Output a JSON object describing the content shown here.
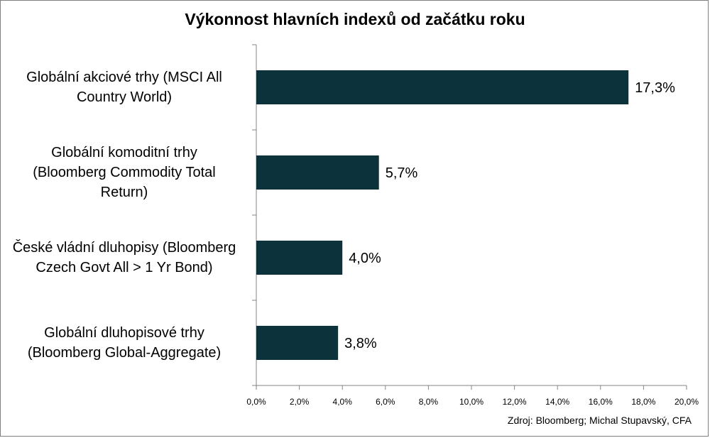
{
  "chart_data": {
    "type": "bar",
    "orientation": "horizontal",
    "title": "Výkonnost hlavních indexů od začátku roku",
    "categories": [
      "Globální akciové trhy (MSCI All Country World)",
      "Globální komoditní trhy (Bloomberg Commodity Total Return)",
      "České vládní dluhopisy (Bloomberg Czech Govt All > 1 Yr Bond)",
      "Globální dluhopisové trhy (Bloomberg Global-Aggregate)"
    ],
    "category_lines": [
      [
        "Globální akciové trhy (MSCI All",
        "Country World)"
      ],
      [
        "Globální komoditní trhy",
        "(Bloomberg Commodity Total",
        "Return)"
      ],
      [
        "České vládní dluhopisy (Bloomberg",
        "Czech Govt All > 1 Yr Bond)"
      ],
      [
        "Globální dluhopisové trhy",
        "(Bloomberg Global-Aggregate)"
      ]
    ],
    "values": [
      17.3,
      5.7,
      4.0,
      3.8
    ],
    "data_labels": [
      "17,3%",
      "5,7%",
      "4,0%",
      "3,8%"
    ],
    "xlim": [
      0,
      20
    ],
    "xticks": [
      0,
      2,
      4,
      6,
      8,
      10,
      12,
      14,
      16,
      18,
      20
    ],
    "xtick_labels": [
      "0,0%",
      "2,0%",
      "4,0%",
      "6,0%",
      "8,0%",
      "10,0%",
      "12,0%",
      "14,0%",
      "16,0%",
      "18,0%",
      "20,0%"
    ],
    "bar_color": "#0c333b",
    "grid": false,
    "legend": "none"
  },
  "source_note": "Zdroj: Bloomberg; Michal Stupavský, CFA"
}
